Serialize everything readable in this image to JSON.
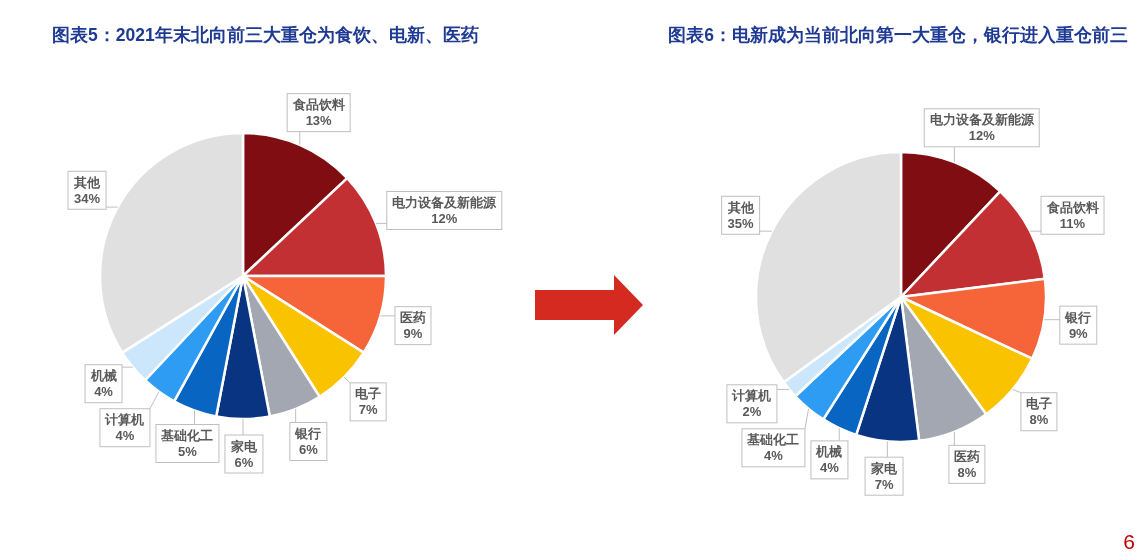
{
  "chart_data": [
    {
      "type": "pie",
      "title": "图表5：2021年末北向前三大重仓为食饮、电新、医药",
      "categories": [
        "食品饮料",
        "电力设备及新能源",
        "医药",
        "电子",
        "银行",
        "家电",
        "基础化工",
        "计算机",
        "机械",
        "其他"
      ],
      "values": [
        13,
        12,
        9,
        7,
        6,
        6,
        5,
        4,
        4,
        34
      ],
      "value_labels": [
        "13%",
        "12%",
        "9%",
        "7%",
        "6%",
        "6%",
        "5%",
        "4%",
        "4%",
        "34%"
      ],
      "colors": [
        "#7f0d12",
        "#c33034",
        "#f6643a",
        "#f9c300",
        "#a2a7b1",
        "#083481",
        "#0865c1",
        "#2d9cf2",
        "#cce6fb",
        "#e0e0e0"
      ]
    },
    {
      "type": "pie",
      "title": "图表6：电新成为当前北向第一大重仓，银行进入重仓前三",
      "categories": [
        "电力设备及新能源",
        "食品饮料",
        "银行",
        "电子",
        "医药",
        "家电",
        "机械",
        "基础化工",
        "计算机",
        "其他"
      ],
      "values": [
        12,
        11,
        9,
        8,
        8,
        7,
        4,
        4,
        2,
        35
      ],
      "value_labels": [
        "12%",
        "11%",
        "9%",
        "8%",
        "8%",
        "7%",
        "4%",
        "4%",
        "2%",
        "35%"
      ],
      "colors": [
        "#7f0d12",
        "#c33034",
        "#f6643a",
        "#f9c300",
        "#a2a7b1",
        "#083481",
        "#0865c1",
        "#2d9cf2",
        "#cce6fb",
        "#e0e0e0"
      ],
      "annotations": [
        "6"
      ]
    }
  ]
}
